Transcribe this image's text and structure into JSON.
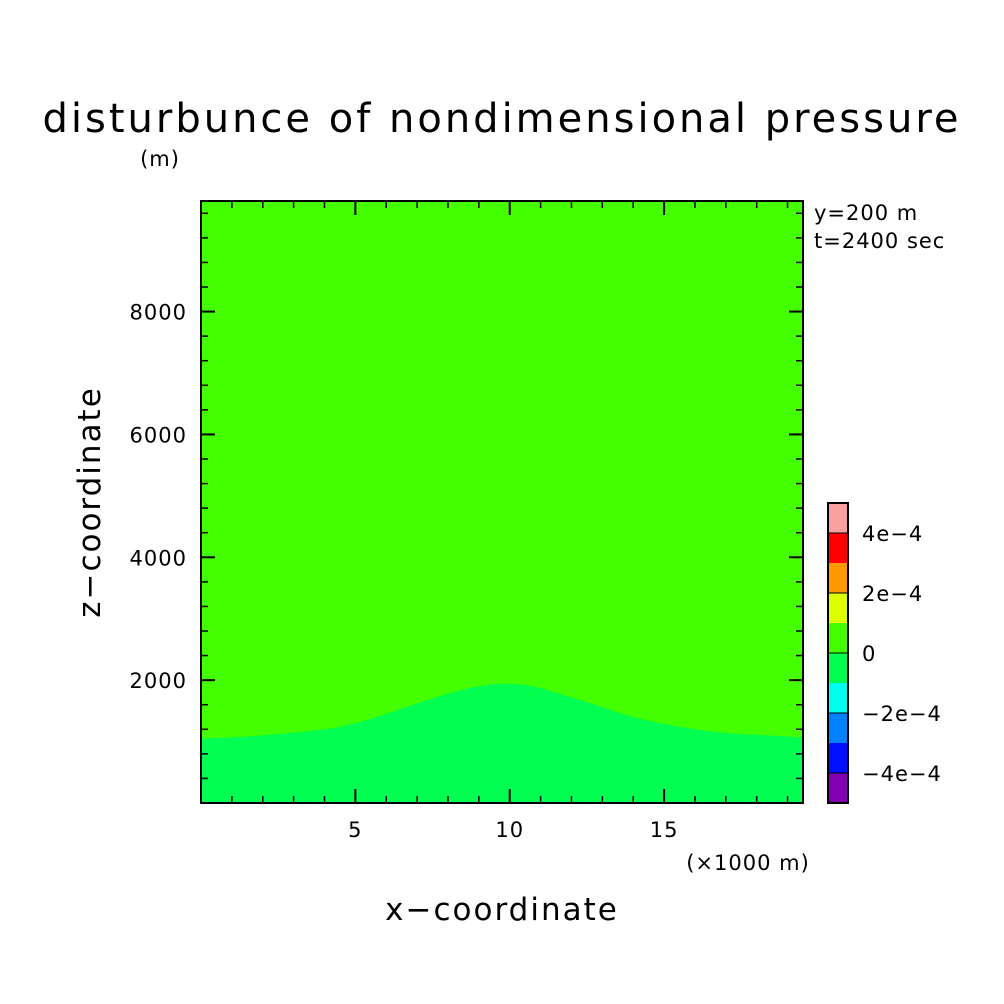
{
  "chart_data": {
    "type": "contour",
    "title": "disturbunce of nondimensional pressure",
    "yunit": "(m)",
    "xunit": "(×1000 m)",
    "xlabel": "x−coordinate",
    "ylabel": "z−coordinate",
    "annotations": [
      "y=200 m",
      "t=2400 sec"
    ],
    "xlim": [
      0,
      19.5
    ],
    "ylim": [
      0,
      9800
    ],
    "xticks": [
      {
        "value": 5,
        "label": "5"
      },
      {
        "value": 10,
        "label": "10"
      },
      {
        "value": 15,
        "label": "15"
      }
    ],
    "yticks": [
      {
        "value": 2000,
        "label": "2000"
      },
      {
        "value": 4000,
        "label": "4000"
      },
      {
        "value": 6000,
        "label": "6000"
      },
      {
        "value": 8000,
        "label": "8000"
      }
    ],
    "background_color": "#44ff00",
    "regions": [
      {
        "color": "#00ff50",
        "upper_boundary": [
          {
            "x": 0,
            "z": 1050
          },
          {
            "x": 2,
            "z": 1100
          },
          {
            "x": 4,
            "z": 1200
          },
          {
            "x": 5,
            "z": 1300
          },
          {
            "x": 6,
            "z": 1450
          },
          {
            "x": 7,
            "z": 1620
          },
          {
            "x": 8,
            "z": 1780
          },
          {
            "x": 9,
            "z": 1900
          },
          {
            "x": 9.8,
            "z": 1940
          },
          {
            "x": 10.5,
            "z": 1920
          },
          {
            "x": 11,
            "z": 1870
          },
          {
            "x": 12,
            "z": 1720
          },
          {
            "x": 13,
            "z": 1560
          },
          {
            "x": 14,
            "z": 1400
          },
          {
            "x": 15,
            "z": 1290
          },
          {
            "x": 16,
            "z": 1200
          },
          {
            "x": 17,
            "z": 1140
          },
          {
            "x": 18,
            "z": 1110
          },
          {
            "x": 19.5,
            "z": 1070
          }
        ]
      }
    ],
    "colorbar": {
      "colors": [
        "#8000b0",
        "#0010ff",
        "#0082ff",
        "#00ffee",
        "#00ff50",
        "#44ff00",
        "#ddff00",
        "#ff9900",
        "#ff0000",
        "#f9a0a0"
      ],
      "labels": [
        {
          "value": "-4e-4",
          "text": "−4e−4"
        },
        {
          "value": "-2e-4",
          "text": "−2e−4"
        },
        {
          "value": "0",
          "text": "0"
        },
        {
          "value": "2e-4",
          "text": "2e−4"
        },
        {
          "value": "4e-4",
          "text": "4e−4"
        }
      ]
    }
  }
}
